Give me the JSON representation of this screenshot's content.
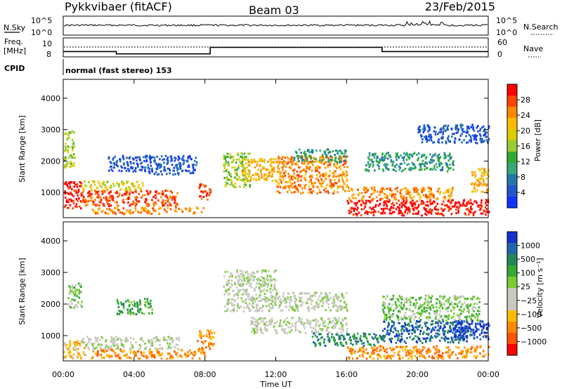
{
  "header": {
    "radar": "Pykkvibaer (fitACF)",
    "beam": "Beam 03",
    "date": "23/Feb/2015"
  },
  "panel_labels": {
    "nsky": "N.Sky",
    "nsearch": "N.Search",
    "freq_line1": "Freq.",
    "freq_line2": "[MHz]",
    "nave": "Nave",
    "cpid": "CPID",
    "cpid_text": "normal (fast stereo) 153"
  },
  "chart_data": [
    {
      "type": "line",
      "name": "noise",
      "y_ticks_left": [
        "10^5",
        "10^0"
      ],
      "y_ticks_right": [
        "10^5",
        "10^0"
      ],
      "baseline_fraction": 0.52
    },
    {
      "type": "line",
      "name": "frequency",
      "y_ticks_left": [
        "10",
        "8"
      ],
      "y_ticks_right": [
        "60",
        "0"
      ],
      "steps": [
        {
          "t": 0,
          "level": 0.72
        },
        {
          "t": 3,
          "level": 0.84
        },
        {
          "t": 8.3,
          "level": 0.5
        },
        {
          "t": 18,
          "level": 0.72
        },
        {
          "t": 24,
          "level": 0.72
        }
      ]
    },
    {
      "type": "heatmap",
      "name": "power",
      "xlabel": "",
      "ylabel": "Slant Range [km]",
      "ylim": [
        200,
        4600
      ],
      "y_ticks": [
        1000,
        2000,
        3000,
        4000
      ],
      "colorbar": {
        "label": "Power [dB]",
        "ticks": [
          "28",
          "24",
          "20",
          "16",
          "12",
          "8",
          "4"
        ],
        "colors": [
          "#ff0000",
          "#ff4400",
          "#ff8800",
          "#ffbb00",
          "#ddcc00",
          "#99cc33",
          "#33aa33",
          "#33aa77",
          "#2277aa",
          "#2255cc",
          "#1133ff"
        ]
      },
      "regions": [
        {
          "t0": 0.0,
          "t1": 1.0,
          "r0": 500,
          "r1": 1400,
          "c": 0
        },
        {
          "t0": 0.0,
          "t1": 0.6,
          "r0": 1800,
          "r1": 3000,
          "c": 5
        },
        {
          "t0": 1.0,
          "t1": 6.5,
          "r0": 600,
          "r1": 1100,
          "c": 1
        },
        {
          "t0": 1.0,
          "t1": 4.5,
          "r0": 1100,
          "r1": 1400,
          "c": 4
        },
        {
          "t0": 2.5,
          "t1": 5.0,
          "r0": 1700,
          "r1": 2200,
          "c": 9
        },
        {
          "t0": 1.5,
          "t1": 8.0,
          "r0": 350,
          "r1": 550,
          "c": 2
        },
        {
          "t0": 4.5,
          "t1": 7.5,
          "r0": 1600,
          "r1": 2200,
          "c": 9
        },
        {
          "t0": 7.6,
          "t1": 8.3,
          "r0": 800,
          "r1": 1300,
          "c": 1
        },
        {
          "t0": 9.0,
          "t1": 10.5,
          "r0": 1200,
          "r1": 2300,
          "c": 5
        },
        {
          "t0": 10.0,
          "t1": 12.0,
          "r0": 1400,
          "r1": 2100,
          "c": 3
        },
        {
          "t0": 12.0,
          "t1": 16.0,
          "r0": 1000,
          "r1": 2200,
          "c": 2
        },
        {
          "t0": 13.0,
          "t1": 16.0,
          "r0": 2000,
          "r1": 2400,
          "c": 7
        },
        {
          "t0": 16.0,
          "t1": 24.0,
          "r0": 300,
          "r1": 800,
          "c": 0
        },
        {
          "t0": 16.0,
          "t1": 22.0,
          "r0": 800,
          "r1": 1200,
          "c": 2
        },
        {
          "t0": 17.0,
          "t1": 22.0,
          "r0": 1700,
          "r1": 2300,
          "c": 7
        },
        {
          "t0": 20.0,
          "t1": 24.0,
          "r0": 2600,
          "r1": 3200,
          "c": 9
        },
        {
          "t0": 23.0,
          "t1": 24.0,
          "r0": 1000,
          "r1": 1800,
          "c": 3
        }
      ]
    },
    {
      "type": "heatmap",
      "name": "velocity",
      "xlabel": "Time UT",
      "ylabel": "Slant Range [km]",
      "ylim": [
        200,
        4600
      ],
      "y_ticks": [
        1000,
        2000,
        3000,
        4000
      ],
      "x_ticks": [
        "00:00",
        "04:00",
        "08:00",
        "12:00",
        "16:00",
        "20:00",
        "00:00"
      ],
      "colorbar": {
        "label": "Velocity [m s⁻¹]",
        "ticks": [
          "1000",
          "500",
          "100",
          "25",
          "−25",
          "−100",
          "−500",
          "−1000"
        ],
        "colors": [
          "#1133cc",
          "#2266aa",
          "#228855",
          "#33aa33",
          "#77cc33",
          "#c8c8c0",
          "#c8c8c0",
          "#ffbb00",
          "#ff8800",
          "#ff5500",
          "#ff0000"
        ]
      },
      "regions": [
        {
          "t0": 0.0,
          "t1": 1.2,
          "r0": 300,
          "r1": 900,
          "c": 7
        },
        {
          "t0": 0.2,
          "t1": 1.0,
          "r0": 1900,
          "r1": 2700,
          "c": 4
        },
        {
          "t0": 1.0,
          "t1": 6.5,
          "r0": 600,
          "r1": 1000,
          "c": 5
        },
        {
          "t0": 1.5,
          "t1": 8.0,
          "r0": 300,
          "r1": 600,
          "c": 8
        },
        {
          "t0": 3.0,
          "t1": 5.0,
          "r0": 1700,
          "r1": 2200,
          "c": 3
        },
        {
          "t0": 7.5,
          "t1": 8.5,
          "r0": 600,
          "r1": 1200,
          "c": 8
        },
        {
          "t0": 9.0,
          "t1": 12.0,
          "r0": 1800,
          "r1": 3100,
          "c": 5
        },
        {
          "t0": 10.5,
          "t1": 16.0,
          "r0": 1100,
          "r1": 1600,
          "c": 5
        },
        {
          "t0": 12.0,
          "t1": 16.0,
          "r0": 1800,
          "r1": 2400,
          "c": 5
        },
        {
          "t0": 14.0,
          "t1": 18.0,
          "r0": 700,
          "r1": 1100,
          "c": 2
        },
        {
          "t0": 16.0,
          "t1": 24.0,
          "r0": 300,
          "r1": 700,
          "c": 8
        },
        {
          "t0": 18.0,
          "t1": 23.0,
          "r0": 800,
          "r1": 1500,
          "c": 1
        },
        {
          "t0": 18.0,
          "t1": 23.5,
          "r0": 1500,
          "r1": 2300,
          "c": 4
        },
        {
          "t0": 22.0,
          "t1": 24.0,
          "r0": 900,
          "r1": 1500,
          "c": 0
        }
      ]
    }
  ]
}
